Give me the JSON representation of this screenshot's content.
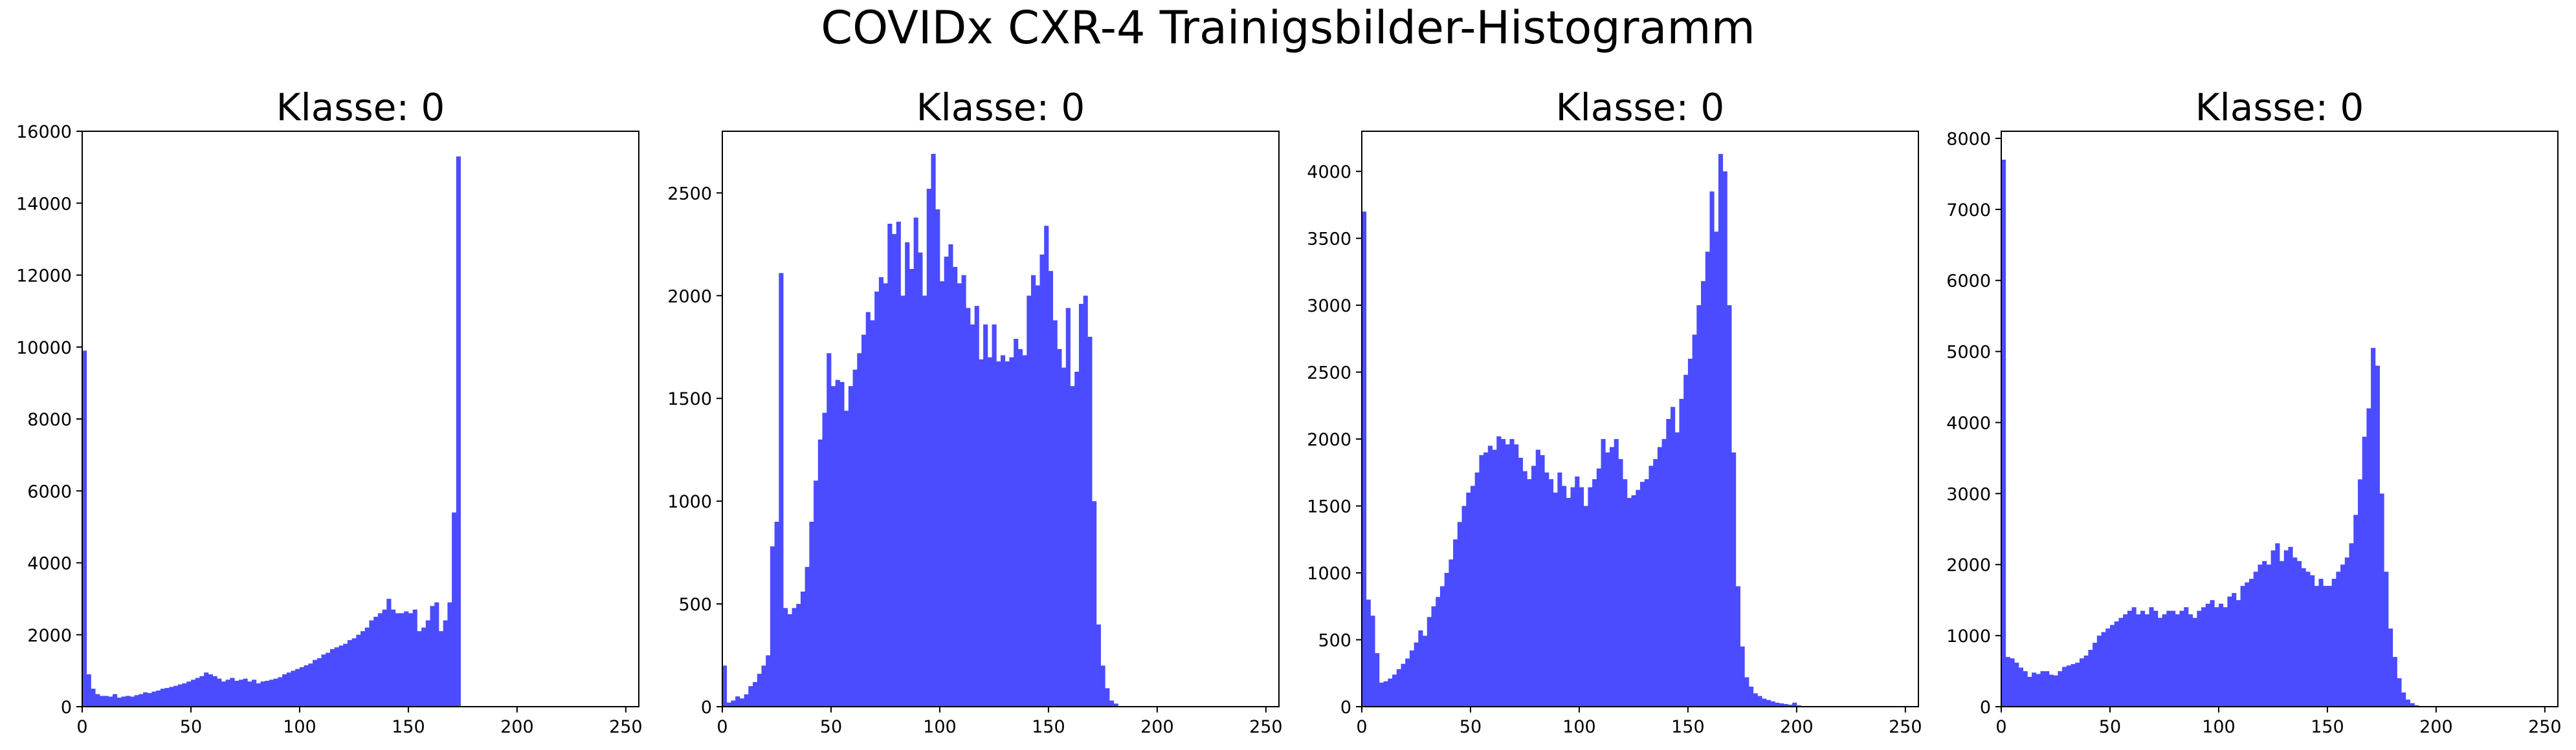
{
  "figure": {
    "title": "COVIDx CXR-4 Trainigsbilder-Histogramm"
  },
  "colors": {
    "bar": "#4b4bff",
    "axis": "#000000"
  },
  "chart_data": [
    {
      "type": "bar",
      "title": "Klasse: 0",
      "xlabel": "",
      "ylabel": "",
      "xlim": [
        0,
        256
      ],
      "ylim": [
        0,
        16000
      ],
      "xticks": [
        0,
        50,
        100,
        150,
        200,
        250
      ],
      "yticks": [
        0,
        2000,
        4000,
        6000,
        8000,
        10000,
        12000,
        14000,
        16000
      ],
      "bin_width": 2,
      "bin_start": 0,
      "values": [
        9900,
        900,
        500,
        350,
        300,
        300,
        280,
        350,
        250,
        280,
        300,
        280,
        320,
        350,
        400,
        380,
        420,
        450,
        500,
        520,
        550,
        580,
        620,
        650,
        700,
        750,
        800,
        850,
        950,
        900,
        850,
        780,
        700,
        750,
        800,
        720,
        750,
        780,
        700,
        750,
        650,
        700,
        720,
        750,
        780,
        820,
        900,
        950,
        1000,
        1050,
        1100,
        1150,
        1200,
        1300,
        1350,
        1450,
        1500,
        1600,
        1650,
        1700,
        1750,
        1850,
        1900,
        2000,
        2100,
        2200,
        2400,
        2500,
        2600,
        2700,
        3000,
        2700,
        2600,
        2600,
        2650,
        2600,
        2700,
        2100,
        2200,
        2400,
        2800,
        2900,
        2100,
        2400,
        2900,
        5400,
        15300
      ]
    },
    {
      "type": "bar",
      "title": "Klasse: 0",
      "xlabel": "",
      "ylabel": "",
      "xlim": [
        0,
        256
      ],
      "ylim": [
        0,
        2800
      ],
      "xticks": [
        0,
        50,
        100,
        150,
        200,
        250
      ],
      "yticks": [
        0,
        500,
        1000,
        1500,
        2000,
        2500
      ],
      "bin_width": 2,
      "bin_start": 0,
      "values": [
        200,
        20,
        30,
        50,
        40,
        60,
        100,
        120,
        160,
        200,
        250,
        780,
        900,
        2110,
        480,
        450,
        480,
        500,
        560,
        680,
        900,
        1100,
        1300,
        1430,
        1720,
        1560,
        1590,
        1580,
        1440,
        1560,
        1640,
        1720,
        1810,
        1920,
        1880,
        2020,
        2090,
        2060,
        2350,
        2300,
        2360,
        2000,
        2260,
        2130,
        2380,
        2210,
        2000,
        2520,
        2690,
        2420,
        2070,
        2190,
        2250,
        2140,
        2060,
        2100,
        1940,
        1860,
        1950,
        1690,
        1860,
        1700,
        1860,
        1680,
        1710,
        1680,
        1700,
        1790,
        1740,
        1710,
        2000,
        2100,
        2050,
        2200,
        2340,
        2120,
        1880,
        1740,
        1650,
        1940,
        1560,
        1630,
        1960,
        2000,
        1800,
        1000,
        400,
        200,
        90,
        30,
        15
      ]
    },
    {
      "type": "bar",
      "title": "Klasse: 0",
      "xlabel": "",
      "ylabel": "",
      "xlim": [
        0,
        256
      ],
      "ylim": [
        0,
        4300
      ],
      "xticks": [
        0,
        50,
        100,
        150,
        200,
        250
      ],
      "yticks": [
        0,
        500,
        1000,
        1500,
        2000,
        2500,
        3000,
        3500,
        4000
      ],
      "bin_width": 2,
      "bin_start": 0,
      "values": [
        3700,
        800,
        680,
        400,
        180,
        190,
        210,
        240,
        280,
        320,
        360,
        420,
        480,
        570,
        530,
        670,
        750,
        820,
        900,
        1000,
        1100,
        1250,
        1380,
        1500,
        1600,
        1650,
        1750,
        1880,
        1900,
        1950,
        1920,
        2020,
        2000,
        1960,
        2000,
        1960,
        1860,
        1760,
        1700,
        1800,
        1920,
        1880,
        1750,
        1700,
        1600,
        1750,
        1650,
        1560,
        1640,
        1720,
        1640,
        1500,
        1640,
        1700,
        1780,
        2000,
        1900,
        1940,
        2000,
        1850,
        1700,
        1560,
        1580,
        1620,
        1680,
        1700,
        1800,
        1850,
        1940,
        2000,
        2150,
        2240,
        2050,
        2300,
        2480,
        2600,
        2780,
        3000,
        3180,
        3400,
        3850,
        3550,
        4130,
        4000,
        3000,
        1900,
        900,
        450,
        220,
        150,
        100,
        80,
        60,
        50,
        40,
        30,
        25,
        20,
        15,
        30,
        10,
        5
      ]
    },
    {
      "type": "bar",
      "title": "Klasse: 0",
      "xlabel": "",
      "ylabel": "",
      "xlim": [
        0,
        256
      ],
      "ylim": [
        0,
        8100
      ],
      "xticks": [
        0,
        50,
        100,
        150,
        200,
        250
      ],
      "yticks": [
        0,
        1000,
        2000,
        3000,
        4000,
        5000,
        6000,
        7000,
        8000
      ],
      "bin_width": 2,
      "bin_start": 0,
      "values": [
        7700,
        700,
        680,
        620,
        550,
        500,
        420,
        480,
        460,
        500,
        500,
        450,
        440,
        500,
        560,
        580,
        600,
        620,
        680,
        720,
        800,
        900,
        1000,
        1050,
        1100,
        1150,
        1200,
        1250,
        1300,
        1350,
        1400,
        1300,
        1350,
        1300,
        1400,
        1350,
        1250,
        1300,
        1350,
        1350,
        1300,
        1350,
        1400,
        1300,
        1250,
        1350,
        1400,
        1450,
        1500,
        1400,
        1450,
        1400,
        1550,
        1600,
        1500,
        1700,
        1750,
        1800,
        1900,
        2000,
        2050,
        2000,
        2200,
        2300,
        2050,
        2200,
        2250,
        2100,
        2050,
        1950,
        1900,
        1850,
        1700,
        1800,
        1700,
        1700,
        1800,
        1900,
        2000,
        2100,
        2300,
        2700,
        3200,
        3800,
        4200,
        5050,
        4800,
        3000,
        1900,
        1100,
        700,
        400,
        200,
        100,
        50,
        20,
        10,
        5
      ]
    }
  ]
}
